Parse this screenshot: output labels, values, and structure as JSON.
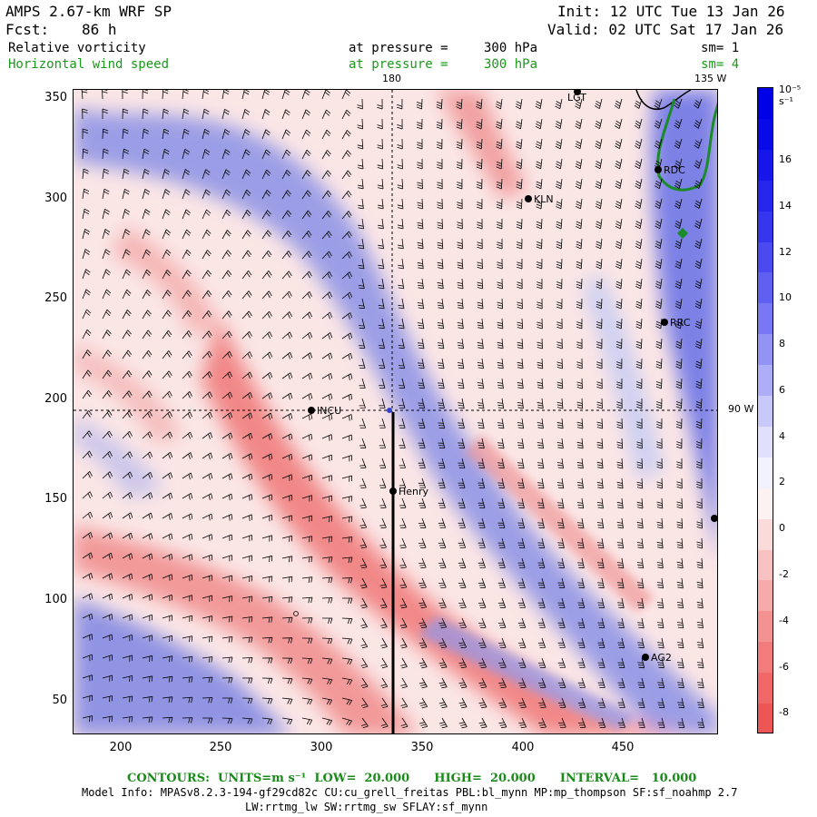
{
  "header": {
    "title": "AMPS 2.67-km WRF SP",
    "init": "Init: 12 UTC Tue 13 Jan 26",
    "fcst_label": "Fcst:",
    "fcst_value": "86 h",
    "valid": "Valid: 02 UTC Sat 17 Jan 26"
  },
  "fields": [
    {
      "name": "Relative vorticity",
      "level_label": "at pressure =",
      "level_value": "300 hPa",
      "sm": "sm= 1"
    },
    {
      "name": "Horizontal wind speed",
      "level_label": "at pressure =",
      "level_value": "300 hPa",
      "sm": "sm= 4"
    }
  ],
  "meridians": {
    "m180": "180",
    "m135w": "135 W",
    "m90w": "90 W"
  },
  "axes": {
    "x_ticks": [
      "200",
      "250",
      "300",
      "350",
      "400",
      "450"
    ],
    "y_ticks": [
      "350",
      "300",
      "250",
      "200",
      "150",
      "100",
      "50"
    ]
  },
  "colorbar": {
    "unit": "10⁻⁵ s⁻¹",
    "labels": [
      "16",
      "14",
      "12",
      "10",
      "8",
      "6",
      "4",
      "2",
      "0",
      "-2",
      "-4",
      "-6",
      "-8"
    ]
  },
  "stations": [
    {
      "name": "LGT"
    },
    {
      "name": "RDC"
    },
    {
      "name": "KLN"
    },
    {
      "name": "RRC"
    },
    {
      "name": "INCU"
    },
    {
      "name": "Henry"
    },
    {
      "name": "AG2"
    }
  ],
  "footer": {
    "contours": "CONTOURS:  UNITS=m s⁻¹  LOW=  20.000      HIGH=  20.000      INTERVAL=   10.000",
    "model_info": "Model Info: MPASv8.2.3-194-gf29cd82c CU:cu_grell_freitas PBL:bl_mynn MP:mp_thompson SF:sf_noahmp 2.7",
    "model_info2": "LW:rrtmg_lw SW:rrtmg_sw SFLAY:sf_mynn"
  },
  "colors": {
    "vort_neg": "#ef6f6f",
    "vort_pos": "#3c3cef",
    "coast": "#1a8a2a",
    "barb": "#000000"
  }
}
